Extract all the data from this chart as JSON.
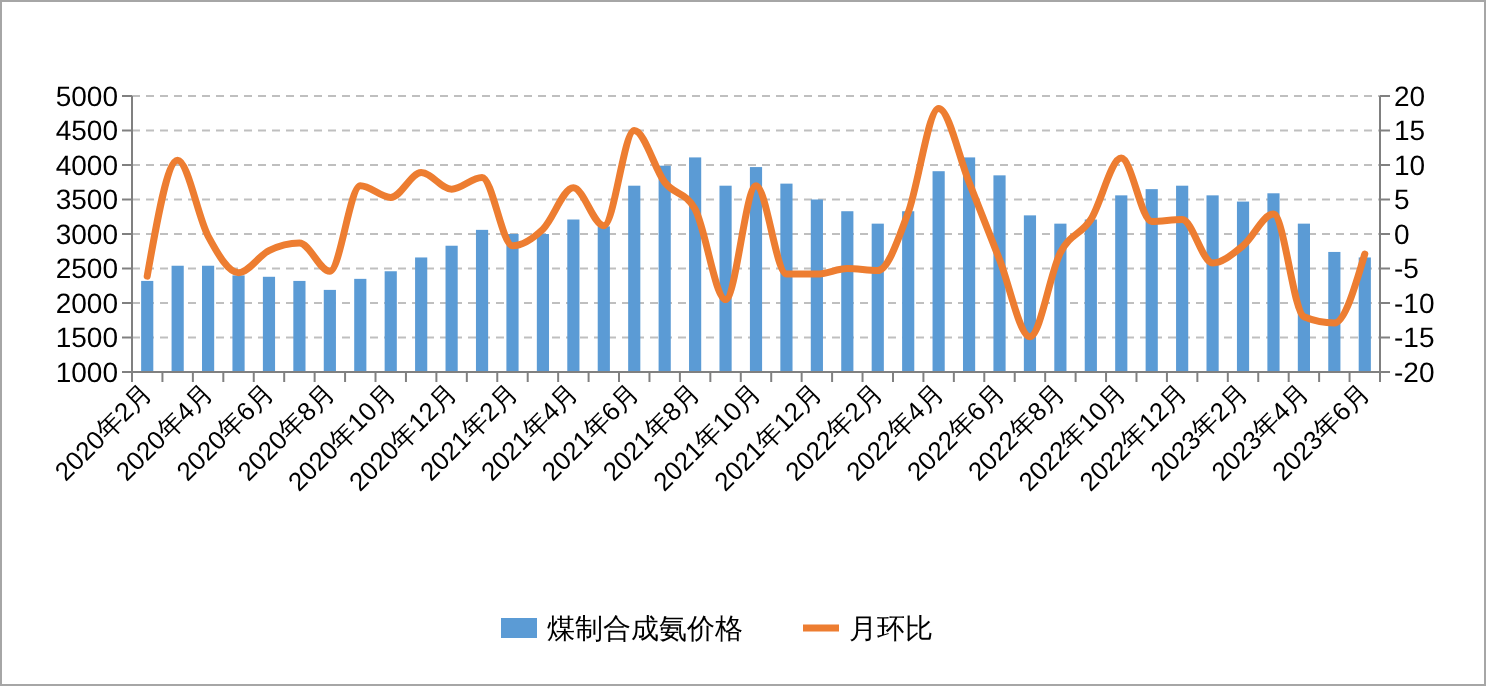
{
  "chart_data": {
    "type": "bar",
    "categories": [
      "2020年2月",
      null,
      "2020年4月",
      null,
      "2020年6月",
      null,
      "2020年8月",
      null,
      "2020年10月",
      null,
      "2020年12月",
      null,
      "2021年2月",
      null,
      "2021年4月",
      null,
      "2021年6月",
      null,
      "2021年8月",
      null,
      "2021年10月",
      null,
      "2021年12月",
      null,
      "2022年2月",
      null,
      "2022年4月",
      null,
      "2022年6月",
      null,
      "2022年8月",
      null,
      "2022年10月",
      null,
      "2022年12月",
      null,
      "2023年2月",
      null,
      "2023年4月",
      null,
      "2023年6月"
    ],
    "series": [
      {
        "name": "煤制合成氨价格",
        "color": "#5b9bd5",
        "values": [
          2320,
          2540,
          2540,
          2400,
          2380,
          2320,
          2190,
          2350,
          2460,
          2660,
          2830,
          3060,
          3000,
          3000,
          3210,
          3110,
          3700,
          3990,
          4110,
          3700,
          3970,
          3730,
          3500,
          3330,
          3150,
          3330,
          3910,
          4110,
          3850,
          3270,
          3150,
          3210,
          3560,
          3650,
          3700,
          3560,
          3470,
          3590,
          3150,
          2740,
          2660
        ]
      },
      {
        "name": "月环比",
        "type": "line",
        "axis": "y2",
        "color": "#ed7d31",
        "values": [
          -6.1,
          10.7,
          -0.3,
          -5.6,
          -2.4,
          -1.3,
          -5.4,
          7,
          5.3,
          8.9,
          6.5,
          8.2,
          -1.7,
          0.7,
          6.7,
          1.2,
          15,
          7.5,
          3.6,
          -9.5,
          7,
          -5.8,
          -5.8,
          -5,
          -5.3,
          3.1,
          18.2,
          7.5,
          -3.7,
          -14.9,
          -2.7,
          2.1,
          11,
          1.8,
          2.1,
          -4.2,
          -1.7,
          2.9,
          -12,
          -12.9,
          -2.9
        ]
      }
    ],
    "ylim": [
      1000,
      5000
    ],
    "yticks": [
      1000,
      1500,
      2000,
      2500,
      3000,
      3500,
      4000,
      4500,
      5000
    ],
    "y2lim": [
      -20,
      20
    ],
    "y2ticks": [
      -20,
      -15,
      -10,
      -5,
      0,
      5,
      10,
      15,
      20
    ],
    "grid": "y",
    "legend": "bottom",
    "marker": "none",
    "line_style": "solid"
  }
}
